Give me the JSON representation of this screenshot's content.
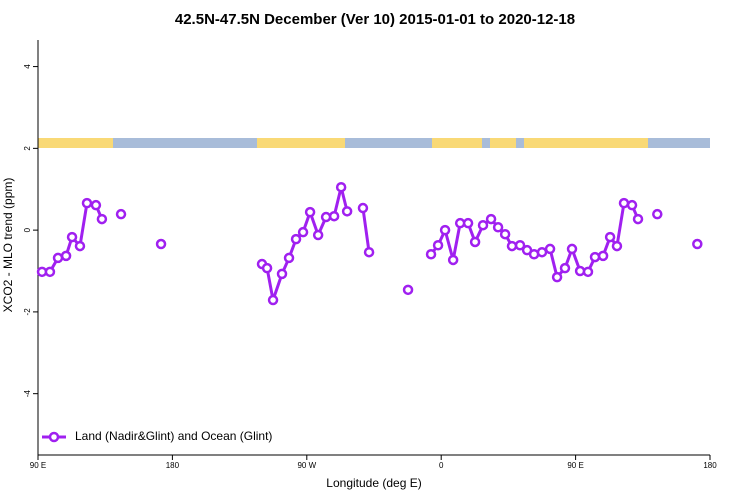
{
  "chart_data": {
    "type": "line",
    "title": "42.5N-47.5N December (Ver 10)   2015-01-01 to 2020-12-18",
    "x_label": "Longitude (deg E)",
    "y_label": "XCO2 - MLO trend (ppm)",
    "xlim": [
      90,
      540
    ],
    "ylim": [
      -5.5,
      4.65
    ],
    "xticks": [
      {
        "value": 90,
        "label": "90 E"
      },
      180,
      {
        "value": 270,
        "label": "90 W"
      },
      {
        "value": 360,
        "label": "0"
      },
      {
        "value": 450,
        "label": "90 E"
      },
      {
        "value": 540,
        "label": "180"
      }
    ],
    "yticks": [
      4,
      2,
      0,
      -2,
      -4
    ],
    "legend": "bottom-left",
    "series": [
      {
        "name": "Land (Nadir&Glint) and Ocean (Glint)",
        "color": "#a020f0",
        "x": [
          92.7,
          98.0,
          103.4,
          108.8,
          112.8,
          118.1,
          122.8,
          128.8,
          132.8,
          null,
          145.6,
          null,
          172.4,
          null,
          240.0,
          243.4,
          247.4,
          253.4,
          258.1,
          262.8,
          267.5,
          272.2,
          277.6,
          282.9,
          288.3,
          293.0,
          297.0,
          null,
          307.6,
          311.7,
          null,
          337.8,
          null,
          353.2,
          357.9,
          362.6,
          368.0,
          372.7,
          378.0,
          382.7,
          388.0,
          393.4,
          398.1,
          402.8,
          407.4,
          412.8,
          417.5,
          422.2,
          427.5,
          432.9,
          437.6,
          442.9,
          447.6,
          453.0,
          458.3,
          463.0,
          468.4,
          473.1,
          477.7,
          482.4,
          487.8,
          491.8,
          null,
          504.7,
          null,
          531.5
        ],
        "values": [
          -1.02,
          -1.02,
          -0.68,
          -0.63,
          -0.17,
          -0.39,
          0.66,
          0.61,
          0.27,
          null,
          0.39,
          null,
          -0.34,
          null,
          -0.83,
          -0.93,
          -1.71,
          -1.07,
          -0.68,
          -0.22,
          -0.05,
          0.44,
          -0.12,
          0.32,
          0.34,
          1.05,
          0.46,
          null,
          0.54,
          -0.54,
          null,
          -1.46,
          null,
          -0.59,
          -0.37,
          0,
          -0.73,
          0.17,
          0.17,
          -0.29,
          0.12,
          0.27,
          0.07,
          -0.1,
          -0.39,
          -0.37,
          -0.49,
          -0.59,
          -0.54,
          -0.46,
          -1.15,
          -0.93,
          -0.46,
          -1.0,
          -1.02,
          -0.66,
          -0.63,
          -0.17,
          -0.39,
          0.66,
          0.61,
          0.27,
          null,
          0.39,
          null,
          -0.34
        ]
      }
    ]
  }
}
